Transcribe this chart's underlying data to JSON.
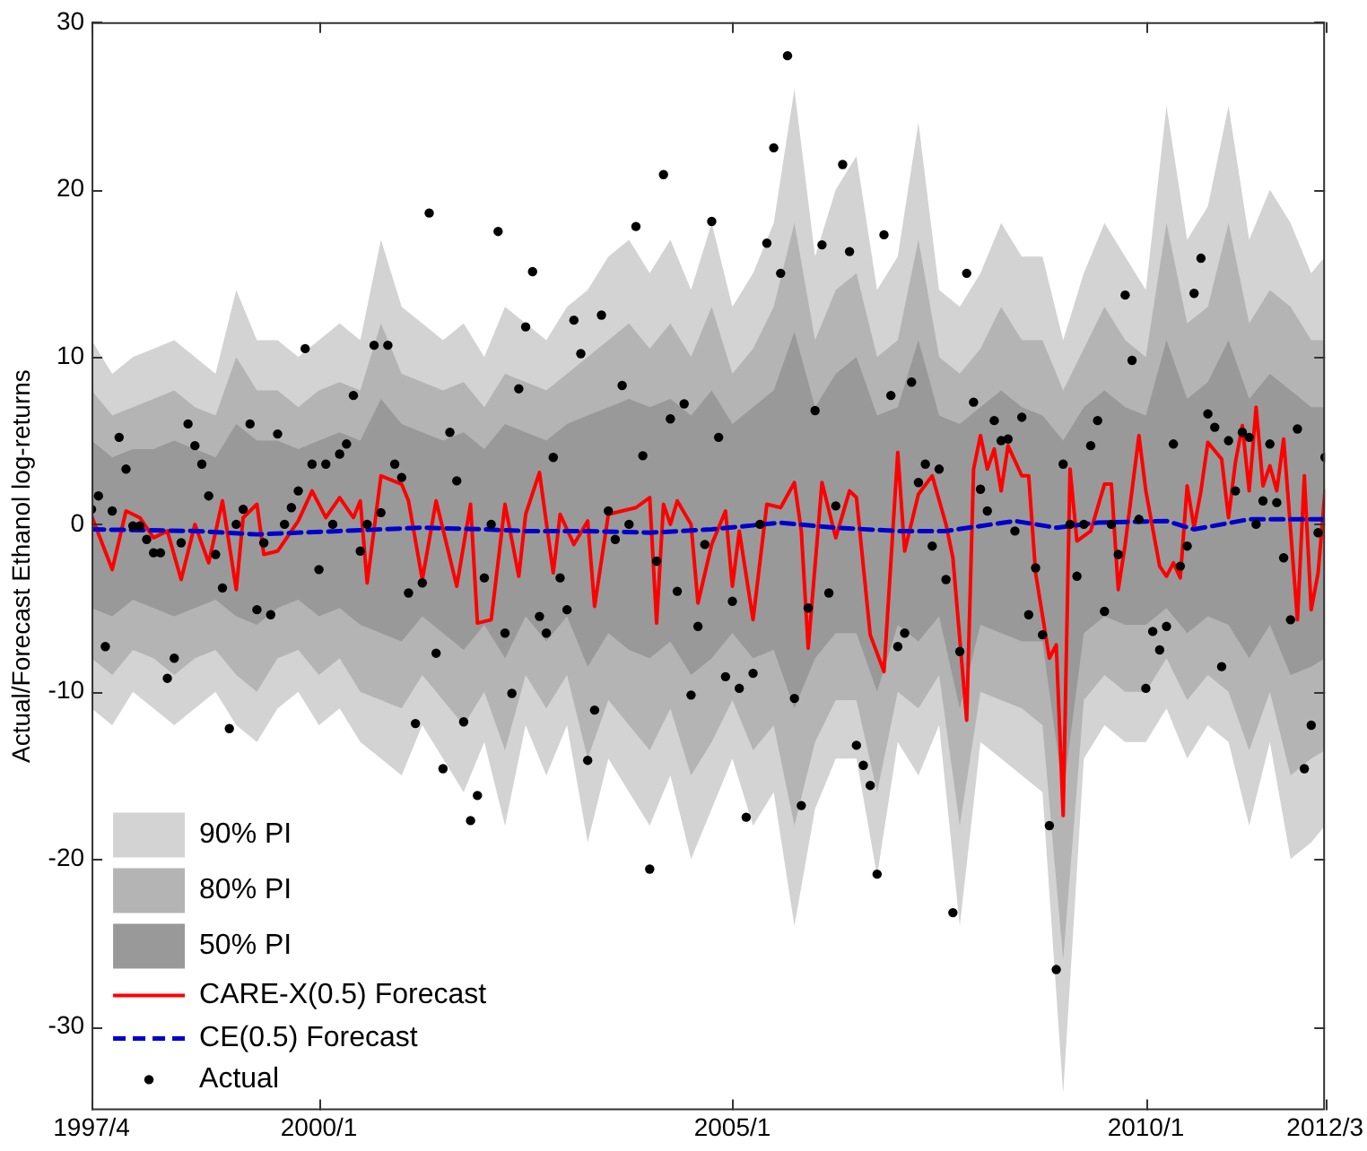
{
  "chart_data": {
    "type": "line",
    "ylabel": "Actual/Forecast Ethanol log-returns",
    "legend": "bottom left",
    "xlim": [
      "1997-04",
      "2012-03"
    ],
    "xticks": [
      {
        "value": "1997-04",
        "label": "1997/4"
      },
      {
        "value": "2000-01",
        "label": "2000/1"
      },
      {
        "value": "2005-01",
        "label": "2005/1"
      },
      {
        "value": "2010-01",
        "label": "2010/1"
      },
      {
        "value": "2012-03",
        "label": "2012/3"
      }
    ],
    "ylim": [
      -35,
      30
    ],
    "yticks": [
      -30,
      -20,
      -10,
      0,
      10,
      20,
      30
    ],
    "x": [
      "1997-04",
      "1997-05",
      "1997-06",
      "1997-07",
      "1997-08",
      "1997-09",
      "1997-10",
      "1997-11",
      "1997-12",
      "1998-01",
      "1998-02",
      "1998-03",
      "1998-04",
      "1998-05",
      "1998-06",
      "1998-07",
      "1998-08",
      "1998-09",
      "1998-10",
      "1998-11",
      "1998-12",
      "1999-01",
      "1999-02",
      "1999-03",
      "1999-04",
      "1999-05",
      "1999-06",
      "1999-07",
      "1999-08",
      "1999-09",
      "1999-10",
      "1999-11",
      "1999-12",
      "2000-01",
      "2000-02",
      "2000-03",
      "2000-04",
      "2000-05",
      "2000-06",
      "2000-07",
      "2000-08",
      "2000-09",
      "2000-10",
      "2000-11",
      "2000-12",
      "2001-01",
      "2001-02",
      "2001-03",
      "2001-04",
      "2001-05",
      "2001-06",
      "2001-07",
      "2001-08",
      "2001-09",
      "2001-10",
      "2001-11",
      "2001-12",
      "2002-01",
      "2002-02",
      "2002-03",
      "2002-04",
      "2002-05",
      "2002-06",
      "2002-07",
      "2002-08",
      "2002-09",
      "2002-10",
      "2002-11",
      "2002-12",
      "2003-01",
      "2003-02",
      "2003-03",
      "2003-04",
      "2003-05",
      "2003-06",
      "2003-07",
      "2003-08",
      "2003-09",
      "2003-10",
      "2003-11",
      "2003-12",
      "2004-01",
      "2004-02",
      "2004-03",
      "2004-04",
      "2004-05",
      "2004-06",
      "2004-07",
      "2004-08",
      "2004-09",
      "2004-10",
      "2004-11",
      "2004-12",
      "2005-01",
      "2005-02",
      "2005-03",
      "2005-04",
      "2005-05",
      "2005-06",
      "2005-07",
      "2005-08",
      "2005-09",
      "2005-10",
      "2005-11",
      "2005-12",
      "2006-01",
      "2006-02",
      "2006-03",
      "2006-04",
      "2006-05",
      "2006-06",
      "2006-07",
      "2006-08",
      "2006-09",
      "2006-10",
      "2006-11",
      "2006-12",
      "2007-01",
      "2007-02",
      "2007-03",
      "2007-04",
      "2007-05",
      "2007-06",
      "2007-07",
      "2007-08",
      "2007-09",
      "2007-10",
      "2007-11",
      "2007-12",
      "2008-01",
      "2008-02",
      "2008-03",
      "2008-04",
      "2008-05",
      "2008-06",
      "2008-07",
      "2008-08",
      "2008-09",
      "2008-10",
      "2008-11",
      "2008-12",
      "2009-01",
      "2009-02",
      "2009-03",
      "2009-04",
      "2009-05",
      "2009-06",
      "2009-07",
      "2009-08",
      "2009-09",
      "2009-10",
      "2009-11",
      "2009-12",
      "2010-01",
      "2010-02",
      "2010-03",
      "2010-04",
      "2010-05",
      "2010-06",
      "2010-07",
      "2010-08",
      "2010-09",
      "2010-10",
      "2010-11",
      "2010-12",
      "2011-01",
      "2011-02",
      "2011-03",
      "2011-04",
      "2011-05",
      "2011-06",
      "2011-07",
      "2011-08",
      "2011-09",
      "2011-10",
      "2011-11",
      "2011-12",
      "2012-01",
      "2012-02",
      "2012-03"
    ],
    "series": [
      {
        "type": "area",
        "name": "90% PI",
        "color": "#d3d3d3",
        "values": [
          null,
          null,
          null,
          null,
          null,
          null,
          null,
          null,
          null,
          null,
          null,
          null,
          null,
          null,
          null,
          null,
          null,
          null,
          null,
          null,
          null,
          null,
          null,
          null,
          null,
          null,
          null,
          null,
          null,
          null,
          null,
          null,
          null,
          null,
          null,
          null,
          null,
          null,
          null,
          null,
          null,
          null,
          null,
          null,
          null,
          null,
          null,
          null,
          null,
          null,
          null,
          null,
          null,
          null,
          null,
          null,
          null,
          null,
          null,
          null,
          null
        ],
        "x": [
          "1997-04",
          "1997-07",
          "1997-10",
          "1998-01",
          "1998-04",
          "1998-07",
          "1998-10",
          "1999-01",
          "1999-04",
          "1999-07",
          "1999-10",
          "2000-01",
          "2000-04",
          "2000-07",
          "2000-10",
          "2001-01",
          "2001-04",
          "2001-07",
          "2001-10",
          "2002-01",
          "2002-04",
          "2002-07",
          "2002-10",
          "2003-01",
          "2003-04",
          "2003-07",
          "2003-10",
          "2004-01",
          "2004-04",
          "2004-07",
          "2004-10",
          "2005-01",
          "2005-04",
          "2005-07",
          "2005-10",
          "2006-01",
          "2006-04",
          "2006-07",
          "2006-10",
          "2007-01",
          "2007-04",
          "2007-07",
          "2007-10",
          "2008-01",
          "2008-04",
          "2008-07",
          "2008-10",
          "2009-01",
          "2009-04",
          "2009-07",
          "2009-10",
          "2010-01",
          "2010-04",
          "2010-07",
          "2010-10",
          "2011-01",
          "2011-04",
          "2011-07",
          "2011-10",
          "2012-01",
          "2012-03"
        ],
        "upper": [
          11,
          9,
          10,
          10.5,
          11,
          10,
          9,
          14,
          11,
          11,
          10,
          11,
          12,
          11,
          17,
          13,
          12,
          11,
          12,
          10,
          13,
          12,
          11,
          13,
          14,
          16,
          17,
          15,
          17,
          14,
          18,
          13,
          15,
          18,
          26,
          16,
          20,
          22,
          14,
          16,
          24,
          14,
          13,
          15,
          18,
          16,
          16,
          11,
          15,
          18,
          16,
          14,
          25,
          17,
          19,
          25,
          17,
          20,
          18,
          15,
          16
        ],
        "lower": [
          -11,
          -12,
          -10,
          -11,
          -12,
          -11,
          -10,
          -12,
          -13,
          -11,
          -10,
          -12,
          -11,
          -13,
          -14,
          -15,
          -12,
          -14,
          -16,
          -13,
          -18,
          -12,
          -15,
          -12,
          -19,
          -14,
          -16,
          -18,
          -15,
          -20,
          -17,
          -14,
          -18,
          -16,
          -24,
          -17,
          -14,
          -14,
          -21,
          -13,
          -15,
          -12,
          -24,
          -13,
          -14,
          -15,
          -16,
          -34,
          -14,
          -12,
          -13,
          -13,
          -11,
          -14,
          -12,
          -13,
          -18,
          -13,
          -20,
          -19,
          -18
        ]
      },
      {
        "type": "area",
        "name": "80% PI",
        "color": "#b4b4b4",
        "values": [
          null,
          null,
          null,
          null,
          null,
          null,
          null,
          null,
          null,
          null,
          null,
          null,
          null,
          null,
          null,
          null,
          null,
          null,
          null,
          null,
          null,
          null,
          null,
          null,
          null,
          null,
          null,
          null,
          null,
          null,
          null,
          null,
          null,
          null,
          null,
          null,
          null,
          null,
          null,
          null,
          null,
          null,
          null,
          null,
          null,
          null,
          null,
          null,
          null,
          null,
          null,
          null,
          null,
          null,
          null,
          null,
          null,
          null,
          null,
          null,
          null
        ],
        "x": [
          "1997-04",
          "1997-07",
          "1997-10",
          "1998-01",
          "1998-04",
          "1998-07",
          "1998-10",
          "1999-01",
          "1999-04",
          "1999-07",
          "1999-10",
          "2000-01",
          "2000-04",
          "2000-07",
          "2000-10",
          "2001-01",
          "2001-04",
          "2001-07",
          "2001-10",
          "2002-01",
          "2002-04",
          "2002-07",
          "2002-10",
          "2003-01",
          "2003-04",
          "2003-07",
          "2003-10",
          "2004-01",
          "2004-04",
          "2004-07",
          "2004-10",
          "2005-01",
          "2005-04",
          "2005-07",
          "2005-10",
          "2006-01",
          "2006-04",
          "2006-07",
          "2006-10",
          "2007-01",
          "2007-04",
          "2007-07",
          "2007-10",
          "2008-01",
          "2008-04",
          "2008-07",
          "2008-10",
          "2009-01",
          "2009-04",
          "2009-07",
          "2009-10",
          "2010-01",
          "2010-04",
          "2010-07",
          "2010-10",
          "2011-01",
          "2011-04",
          "2011-07",
          "2011-10",
          "2012-01",
          "2012-03"
        ],
        "upper": [
          8,
          6.5,
          7,
          7.5,
          8,
          7,
          6.5,
          10,
          8,
          8,
          7,
          8,
          8.5,
          8,
          12,
          9,
          8.5,
          8,
          8.5,
          7,
          9,
          8.5,
          8,
          9,
          10,
          11,
          12,
          10.5,
          12,
          10,
          13,
          9,
          10.5,
          13,
          18,
          11,
          14,
          15,
          10,
          11,
          17,
          10,
          9,
          10.5,
          13,
          11,
          11,
          8,
          10.5,
          13,
          11,
          10,
          18,
          12,
          13,
          18,
          12,
          14,
          13,
          11,
          11
        ],
        "lower": [
          -8,
          -9,
          -7.5,
          -8,
          -9,
          -8,
          -7.5,
          -9,
          -10,
          -8,
          -7.5,
          -9,
          -8,
          -10,
          -10.5,
          -11,
          -9,
          -10.5,
          -12,
          -10,
          -13.5,
          -9,
          -11,
          -9,
          -14,
          -10.5,
          -12,
          -13.5,
          -11,
          -15,
          -13,
          -10.5,
          -13.5,
          -12,
          -18,
          -13,
          -10.5,
          -10.5,
          -16,
          -10,
          -11,
          -9,
          -18,
          -10,
          -10.5,
          -11,
          -12,
          -26,
          -10.5,
          -9,
          -10,
          -10,
          -8,
          -10.5,
          -9,
          -10,
          -13.5,
          -10,
          -15,
          -14,
          -13.5
        ]
      },
      {
        "type": "area",
        "name": "50% PI",
        "color": "#999999",
        "values": [
          null,
          null,
          null,
          null,
          null,
          null,
          null,
          null,
          null,
          null,
          null,
          null,
          null,
          null,
          null,
          null,
          null,
          null,
          null,
          null,
          null,
          null,
          null,
          null,
          null,
          null,
          null,
          null,
          null,
          null,
          null,
          null,
          null,
          null,
          null,
          null,
          null,
          null,
          null,
          null,
          null,
          null,
          null,
          null,
          null,
          null,
          null,
          null,
          null,
          null,
          null,
          null,
          null,
          null,
          null,
          null,
          null,
          null,
          null,
          null,
          null
        ],
        "x": [
          "1997-04",
          "1997-07",
          "1997-10",
          "1998-01",
          "1998-04",
          "1998-07",
          "1998-10",
          "1999-01",
          "1999-04",
          "1999-07",
          "1999-10",
          "2000-01",
          "2000-04",
          "2000-07",
          "2000-10",
          "2001-01",
          "2001-04",
          "2001-07",
          "2001-10",
          "2002-01",
          "2002-04",
          "2002-07",
          "2002-10",
          "2003-01",
          "2003-04",
          "2003-07",
          "2003-10",
          "2004-01",
          "2004-04",
          "2004-07",
          "2004-10",
          "2005-01",
          "2005-04",
          "2005-07",
          "2005-10",
          "2006-01",
          "2006-04",
          "2006-07",
          "2006-10",
          "2007-01",
          "2007-04",
          "2007-07",
          "2007-10",
          "2008-01",
          "2008-04",
          "2008-07",
          "2008-10",
          "2009-01",
          "2009-04",
          "2009-07",
          "2009-10",
          "2010-01",
          "2010-04",
          "2010-07",
          "2010-10",
          "2011-01",
          "2011-04",
          "2011-07",
          "2011-10",
          "2012-01",
          "2012-03"
        ],
        "upper": [
          5,
          4,
          4.5,
          4.5,
          5,
          4.5,
          4,
          6,
          5,
          5,
          4.5,
          5,
          5.5,
          5,
          7.5,
          6,
          5.5,
          5,
          5.5,
          4.5,
          6,
          5.5,
          5,
          6,
          6.5,
          7,
          7.5,
          7,
          7.5,
          6.5,
          8,
          6,
          7,
          8,
          11.5,
          7,
          9,
          10,
          6.5,
          7,
          11,
          6.5,
          6,
          7,
          8,
          7,
          6.5,
          5,
          7,
          8,
          7,
          6.5,
          11,
          7.5,
          8.5,
          11,
          7.5,
          9,
          8,
          7,
          7
        ],
        "lower": [
          -5,
          -5.5,
          -4.5,
          -5,
          -5.5,
          -5,
          -4.5,
          -5.5,
          -6,
          -5,
          -4.5,
          -5.5,
          -5,
          -6,
          -6.5,
          -7,
          -5.5,
          -6.5,
          -7.5,
          -6,
          -8,
          -5.5,
          -7,
          -5.5,
          -8.5,
          -6.5,
          -7.5,
          -8,
          -7,
          -9,
          -8,
          -6.5,
          -8,
          -7.5,
          -11,
          -8,
          -6.5,
          -6.5,
          -10,
          -6,
          -7,
          -5.5,
          -11,
          -6,
          -6.5,
          -7,
          -7,
          -16,
          -6.5,
          -5.5,
          -6,
          -6,
          -5,
          -6.5,
          -5.5,
          -6,
          -8,
          -6,
          -9,
          -8.5,
          -8
        ]
      },
      {
        "name": "CARE-X(0.5) Forecast",
        "color": "#ff0000",
        "line_style": "solid",
        "x": [
          "1997-04",
          "1997-07",
          "1997-09",
          "1997-11",
          "1998-01",
          "1998-03",
          "1998-05",
          "1998-07",
          "1998-09",
          "1998-11",
          "1999-01",
          "1999-02",
          "1999-04",
          "1999-05",
          "1999-07",
          "1999-10",
          "1999-12",
          "2000-02",
          "2000-04",
          "2000-06",
          "2000-07",
          "2000-08",
          "2000-10",
          "2001-01",
          "2001-02",
          "2001-04",
          "2001-06",
          "2001-09",
          "2001-11",
          "2001-12",
          "2002-02",
          "2002-04",
          "2002-06",
          "2002-07",
          "2002-09",
          "2002-11",
          "2002-12",
          "2003-02",
          "2003-04",
          "2003-05",
          "2003-07",
          "2003-11",
          "2004-01",
          "2004-02",
          "2004-03",
          "2004-04",
          "2004-05",
          "2004-07",
          "2004-08",
          "2004-10",
          "2004-12",
          "2005-01",
          "2005-02",
          "2005-04",
          "2005-06",
          "2005-08",
          "2005-10",
          "2005-11",
          "2005-12",
          "2006-02",
          "2006-04",
          "2006-06",
          "2006-07",
          "2006-09",
          "2006-11",
          "2007-01",
          "2007-02",
          "2007-04",
          "2007-06",
          "2007-08",
          "2007-09",
          "2007-11",
          "2007-12",
          "2008-01",
          "2008-02",
          "2008-03",
          "2008-04",
          "2008-05",
          "2008-07",
          "2008-08",
          "2008-09",
          "2008-11",
          "2008-12",
          "2009-01",
          "2009-02",
          "2009-03",
          "2009-05",
          "2009-07",
          "2009-08",
          "2009-09",
          "2009-10",
          "2009-12",
          "2010-01",
          "2010-03",
          "2010-04",
          "2010-05",
          "2010-06",
          "2010-07",
          "2010-08",
          "2010-09",
          "2010-10",
          "2010-12",
          "2011-01",
          "2011-02",
          "2011-03",
          "2011-04",
          "2011-05",
          "2011-06",
          "2011-07",
          "2011-08",
          "2011-09",
          "2011-11",
          "2011-12",
          "2012-01",
          "2012-02",
          "2012-03"
        ],
        "values": [
          0.5,
          -2.7,
          0.8,
          0.4,
          -0.8,
          -0.4,
          -3.3,
          0,
          -2.3,
          1.4,
          -3.9,
          0.4,
          1.2,
          -1.8,
          -1.6,
          0.2,
          2,
          0.4,
          1.6,
          0.4,
          1.4,
          -3.5,
          2.9,
          2.4,
          1.4,
          -3.3,
          1.4,
          -3.7,
          1.2,
          -5.9,
          -5.7,
          1.2,
          -3.1,
          0.6,
          3.1,
          -2.9,
          0.6,
          -1.2,
          0.2,
          -4.9,
          0.6,
          1,
          1.6,
          -5.9,
          1.2,
          0,
          1.4,
          0,
          -4.7,
          -1.2,
          0.8,
          -3.7,
          -0.4,
          -5.7,
          1.2,
          1,
          2.5,
          -0.4,
          -7.4,
          2.5,
          -0.8,
          2,
          1.6,
          -6.6,
          -8.8,
          4.3,
          -1.6,
          1.8,
          2.9,
          0,
          -2,
          -11.7,
          3.3,
          5.3,
          3.3,
          4.5,
          2,
          4.7,
          2.9,
          2.9,
          -2.9,
          -8,
          -7.2,
          -17.4,
          3.3,
          -1,
          -0.4,
          2.4,
          2.4,
          -3.9,
          -1.2,
          5.3,
          2,
          -2.5,
          -3.1,
          -2.3,
          -3.2,
          2.3,
          -0.2,
          2,
          4.9,
          3.9,
          0.4,
          3.7,
          5.9,
          2,
          7,
          2.3,
          3.5,
          2,
          5.1,
          -5.7,
          2.9,
          -5.1,
          -2.9,
          2
        ]
      },
      {
        "name": "CE(0.5) Forecast",
        "color": "#0000cc",
        "line_style": "dashed",
        "x": [
          "1997-04",
          "1998-07",
          "1999-04",
          "2000-04",
          "2001-04",
          "2002-01",
          "2002-07",
          "2003-04",
          "2004-01",
          "2004-10",
          "2005-08",
          "2006-04",
          "2007-01",
          "2007-08",
          "2008-06",
          "2008-12",
          "2009-06",
          "2010-04",
          "2010-08",
          "2011-04",
          "2012-03"
        ],
        "values": [
          -0.3,
          -0.4,
          -0.6,
          -0.4,
          -0.2,
          -0.3,
          -0.4,
          -0.4,
          -0.5,
          -0.3,
          0.1,
          -0.2,
          -0.4,
          -0.4,
          0.2,
          -0.2,
          0.1,
          0.2,
          -0.3,
          0.3,
          0.3
        ]
      },
      {
        "type": "scatter",
        "name": "Actual",
        "color": "#000000",
        "marker": "circle",
        "values": [
          0.9,
          1.7,
          -7.3,
          0.8,
          5.2,
          3.3,
          -0.1,
          -0.1,
          -0.9,
          -1.7,
          -1.7,
          -9.2,
          -8,
          -1.1,
          6,
          4.7,
          3.6,
          1.7,
          -1.8,
          -3.8,
          -12.2,
          0,
          0.9,
          6,
          -5.1,
          -1.1,
          -5.4,
          5.4,
          0,
          1,
          2,
          10.5,
          3.6,
          -2.7,
          3.6,
          0,
          4.2,
          4.8,
          7.7,
          -1.6,
          0,
          10.7,
          0.7,
          10.7,
          3.6,
          2.8,
          -4.1,
          -11.9,
          -3.5,
          18.6,
          -7.7,
          -14.6,
          5.5,
          2.6,
          -11.8,
          -17.7,
          -16.2,
          -3.2,
          0,
          17.5,
          -6.5,
          -10.1,
          8.1,
          11.8,
          15.1,
          -5.5,
          -6.5,
          4,
          -3.2,
          -5.1,
          12.2,
          10.2,
          -14.1,
          -11.1,
          12.5,
          0.8,
          -0.9,
          8.3,
          0,
          17.8,
          4.1,
          -20.6,
          -2.2,
          20.9,
          6.3,
          -4,
          7.2,
          -10.2,
          -6.1,
          -1.2,
          18.1,
          5.2,
          -9.1,
          -4.6,
          -9.8,
          -17.5,
          -8.9,
          0,
          16.8,
          22.5,
          15,
          28,
          -10.4,
          -16.8,
          -5,
          6.8,
          16.7,
          -4.1,
          1.1,
          21.5,
          16.3,
          -13.2,
          -14.4,
          -15.6,
          -20.9,
          17.3,
          7.7,
          -7.3,
          -6.5,
          8.5,
          2.5,
          3.6,
          -1.3,
          3.3,
          -3.3,
          -23.2,
          -7.6,
          15,
          7.3,
          2.1,
          0.8,
          6.2,
          5,
          5.1,
          -0.4,
          6.4,
          -5.4,
          -2.6,
          -6.6,
          -18,
          -26.6,
          3.6,
          0,
          -3.1,
          0,
          4.7,
          6.2,
          -5.2,
          0,
          -1.8,
          13.7,
          9.8,
          0.3,
          -9.8,
          -6.4,
          -7.5,
          -6.1,
          4.8,
          -2.5,
          -1.3,
          13.8,
          15.9,
          6.6,
          5.8,
          -8.5,
          5,
          2,
          5.5,
          5.2,
          0,
          1.4,
          4.8,
          1.3,
          -2,
          -5.7,
          5.7,
          -14.6,
          -12,
          -0.5,
          4
        ]
      }
    ]
  }
}
